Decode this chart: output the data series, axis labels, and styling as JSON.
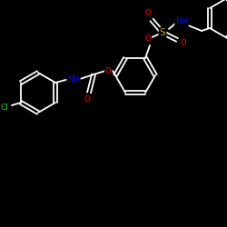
{
  "background_color": "#000000",
  "bond_color": "#ffffff",
  "atom_colors": {
    "O": "#ff0000",
    "N": "#0000ff",
    "S": "#ccaa00",
    "Cl": "#33cc33",
    "C": "#ffffff"
  },
  "figsize": [
    2.5,
    2.5
  ],
  "dpi": 100
}
